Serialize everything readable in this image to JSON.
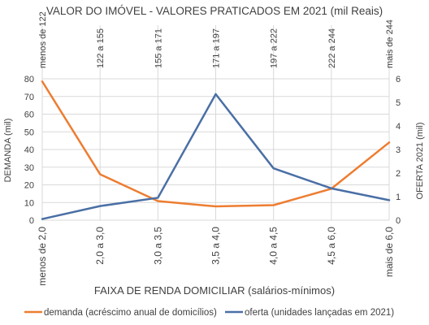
{
  "chart_data": {
    "type": "line",
    "title": "VALOR DO IMÓVEL - VALORES PRATICADOS EM 2021 (mil Reais)",
    "xlabel": "FAIXA DE RENDA DOMICILIAR (salários-mínimos)",
    "ylabel": "DEMANDA (mil)",
    "y2label": "OFERTA 2021 (mil)",
    "categories": [
      "menos de 2,0",
      "2,0 a 3,0",
      "3,0 a 3,5",
      "3,5 a 4,0",
      "4,0 a 4,5",
      "4,5 a 6,0",
      "mais de 6,0"
    ],
    "top_categories": [
      "menos de 122",
      "122 a 155",
      "155 a 171",
      "171 a 197",
      "197 a 222",
      "222 a 244",
      "mais de 244"
    ],
    "ylim": [
      0,
      80
    ],
    "yticks": [
      0,
      10,
      20,
      30,
      40,
      50,
      60,
      70,
      80
    ],
    "y2lim": [
      0,
      6
    ],
    "y2ticks": [
      0,
      1,
      2,
      3,
      4,
      5,
      6
    ],
    "grid": true,
    "legend_position": "bottom",
    "series": [
      {
        "name": "demanda (acréscimo anual de domicílios)",
        "axis": "left",
        "color": "#ED7D31",
        "values": [
          78.5,
          26,
          10.8,
          7.8,
          8.5,
          17.8,
          44
        ]
      },
      {
        "name": "oferta (unidades lançadas em 2021)",
        "axis": "right",
        "color": "#4A6FA5",
        "values": [
          0.05,
          0.6,
          0.95,
          5.35,
          2.2,
          1.35,
          0.85
        ]
      }
    ]
  }
}
